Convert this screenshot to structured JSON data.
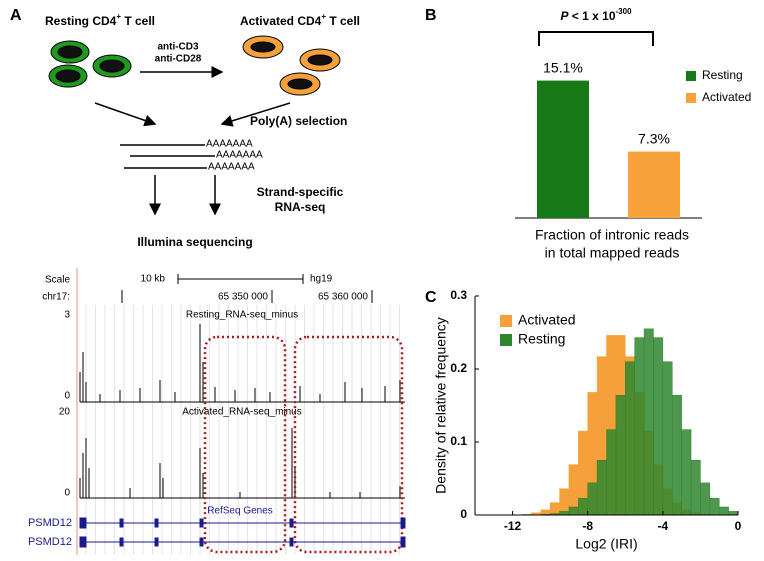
{
  "panel_labels": [
    "A",
    "B",
    "C"
  ],
  "diagram": {
    "resting": {
      "text": "Resting CD4",
      "sup": "+",
      "after": " T cell"
    },
    "activated": {
      "text": "Activated CD4",
      "sup": "+",
      "after": " T cell"
    },
    "stimuli": [
      "anti-CD3",
      "anti-CD28"
    ],
    "polya": "Poly(A) selection",
    "tails": [
      "AAAAAAA",
      "AAAAAAA",
      "AAAAAAA"
    ],
    "rnaseq": [
      "Strand-specific",
      "RNA-seq"
    ],
    "sequencing": "Illumina sequencing"
  },
  "browser": {
    "scale": "Scale",
    "scale_bar": "10 kb",
    "assembly": "hg19",
    "chrom": "chr17:",
    "positions": [
      "65 350 000",
      "65 360 000"
    ],
    "tracks": [
      {
        "max": 3,
        "name": "Resting_RNA-seq_minus",
        "min": 0
      },
      {
        "max": 20,
        "name": "Activated_RNA-seq_minus",
        "min": 0
      }
    ],
    "genes_track": "RefSeq Genes",
    "genes": [
      "PSMD12",
      "PSMD12"
    ]
  },
  "chart_data": [
    {
      "type": "bar",
      "annotation": {
        "italic": "P",
        "text": " < 1 x 10",
        "sup": "-300"
      },
      "xlabel": [
        "Fraction of intronic reads",
        "in total mapped reads"
      ],
      "series": [
        {
          "name": "Resting",
          "color": "#177817",
          "values": [
            15.1
          ],
          "value_labels": [
            "15.1%"
          ]
        },
        {
          "name": "Activated",
          "color": "#f7a23b",
          "values": [
            7.3
          ],
          "value_labels": [
            "7.3%"
          ]
        }
      ]
    },
    {
      "type": "histogram",
      "xlabel": "Log2 (IRI)",
      "ylabel": "Density of relative frequency",
      "bins": [
        -13,
        -12.5,
        -12,
        -11.5,
        -11,
        -10.5,
        -10,
        -9.5,
        -9,
        -8.5,
        -8,
        -7.5,
        -7,
        -6.5,
        -6,
        -5.5,
        -5,
        -4.5,
        -4,
        -3.5,
        -3,
        -2.5,
        -2,
        -1.5,
        -1,
        -0.5,
        0
      ],
      "xlim": [
        -14,
        0
      ],
      "xticks": [
        -12,
        -8,
        -4,
        0
      ],
      "ylim": [
        0,
        0.3
      ],
      "yticks": [
        0,
        0.1,
        0.2,
        0.3
      ],
      "series": [
        {
          "name": "Activated",
          "color": "#f5a03a",
          "values": [
            0,
            0,
            0,
            0.001,
            0.003,
            0.007,
            0.017,
            0.036,
            0.069,
            0.115,
            0.168,
            0.217,
            0.246,
            0.246,
            0.217,
            0.168,
            0.115,
            0.069,
            0.036,
            0.017,
            0.007,
            0.003,
            0.001,
            0,
            0,
            0
          ]
        },
        {
          "name": "Resting",
          "color": "#2f862f",
          "values": [
            0,
            0,
            0,
            0,
            0,
            0.001,
            0.002,
            0.005,
            0.011,
            0.023,
            0.044,
            0.075,
            0.117,
            0.164,
            0.21,
            0.243,
            0.255,
            0.243,
            0.21,
            0.164,
            0.117,
            0.075,
            0.044,
            0.023,
            0.011,
            0.005
          ]
        }
      ]
    }
  ]
}
